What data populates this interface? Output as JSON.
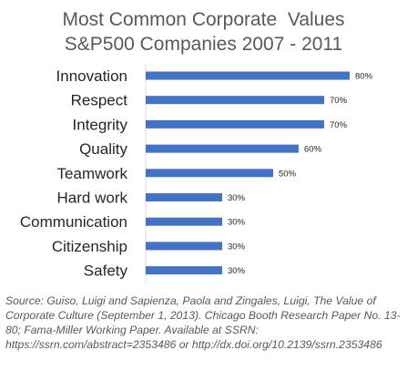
{
  "chart_data": {
    "type": "bar",
    "orientation": "horizontal",
    "title_lines": [
      "Most Common Corporate  Values",
      "S&P500 Companies 2007 - 2011"
    ],
    "categories": [
      "Innovation",
      "Respect",
      "Integrity",
      "Quality",
      "Teamwork",
      "Hard work",
      "Communication",
      "Citizenship",
      "Safety"
    ],
    "values": [
      80,
      70,
      70,
      60,
      50,
      30,
      30,
      30,
      30
    ],
    "value_labels": [
      "80%",
      "70%",
      "70%",
      "60%",
      "50%",
      "30%",
      "30%",
      "30%",
      "30%"
    ],
    "xlim": [
      0,
      80
    ],
    "grid": false,
    "legend": "none",
    "bar_color": "#4472C4"
  },
  "source_note": "Source: Guiso, Luigi and Sapienza, Paola and Zingales, Luigi, The Value of Corporate Culture (September 1, 2013). Chicago Booth Research Paper No. 13-80; Fama-Miller Working Paper. Available at SSRN: https://ssrn.com/abstract=2353486 or http://dx.doi.org/10.2139/ssrn.2353486"
}
